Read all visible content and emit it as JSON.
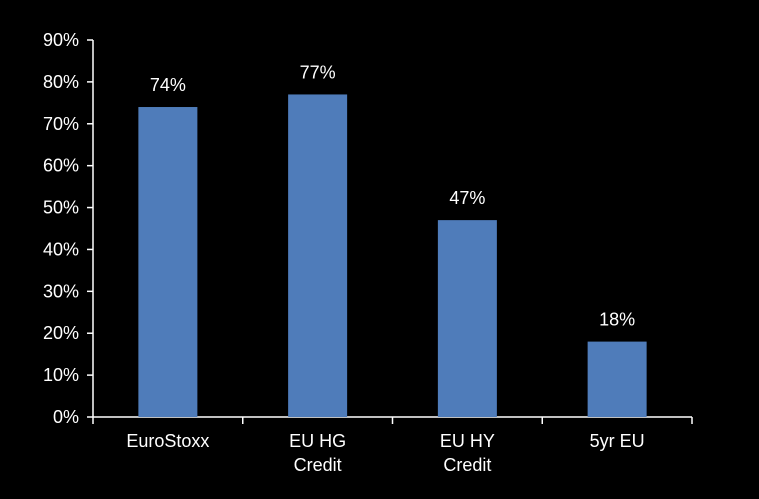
{
  "chart_data": {
    "type": "bar",
    "categories": [
      [
        "EuroStoxx"
      ],
      [
        "EU HG",
        "Credit"
      ],
      [
        "EU HY",
        "Credit"
      ],
      [
        "5yr EU"
      ]
    ],
    "values": [
      74,
      77,
      47,
      18
    ],
    "data_labels": [
      "74%",
      "77%",
      "47%",
      "18%"
    ],
    "ylim": [
      0,
      90
    ],
    "yticks": [
      0,
      10,
      20,
      30,
      40,
      50,
      60,
      70,
      80,
      90
    ],
    "ytick_labels": [
      "0%",
      "10%",
      "20%",
      "30%",
      "40%",
      "50%",
      "60%",
      "70%",
      "80%",
      "90%"
    ],
    "grid": false,
    "colors": {
      "background": "#000000",
      "bar": "#4f7cba",
      "axis": "#ffffff",
      "text": "#ffffff"
    }
  }
}
